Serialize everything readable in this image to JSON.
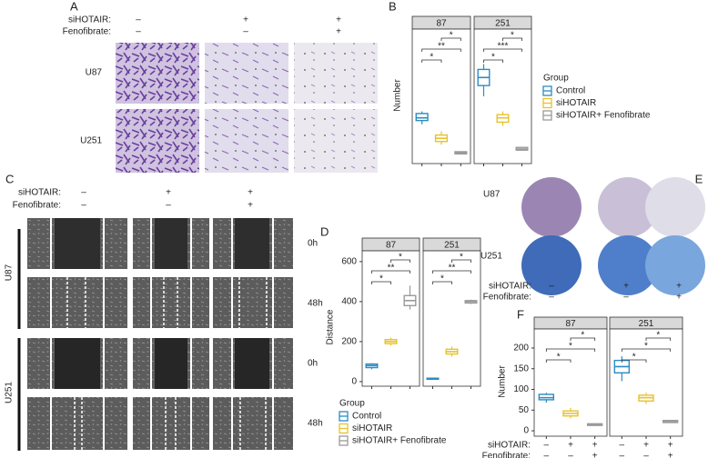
{
  "panels": {
    "A": {
      "label": "A",
      "conditions": [
        "siHOTAIR:",
        "Fenofibrate:"
      ],
      "signs": [
        [
          "–",
          "+",
          "+"
        ],
        [
          "–",
          "–",
          "+"
        ]
      ],
      "cell_lines": [
        "U87",
        "U251"
      ]
    },
    "C": {
      "label": "C",
      "conditions": [
        "siHOTAIR:",
        "Fenofibrate:"
      ],
      "signs": [
        [
          "–",
          "+",
          "+"
        ],
        [
          "–",
          "–",
          "+"
        ]
      ],
      "cell_lines": [
        "U87",
        "U251"
      ],
      "times": [
        "0h",
        "48h"
      ]
    },
    "E": {
      "label": "E",
      "conditions": [
        "siHOTAIR:",
        "Fenofibrate:"
      ],
      "signs": [
        [
          "–",
          "+",
          "+"
        ],
        [
          "–",
          "–",
          "+"
        ]
      ],
      "cell_lines": [
        "U87",
        "U251"
      ]
    }
  },
  "chart_data": [
    {
      "type": "box",
      "label": "B",
      "ylabel": "Number",
      "ylim": [
        -5,
        245
      ],
      "legend_title": "Group",
      "series": [
        {
          "name": "Control",
          "color": "#2b8cc4"
        },
        {
          "name": "siHOTAIR",
          "color": "#e8c22a"
        },
        {
          "name": "siHOTAIR+ Fenofibrate",
          "color": "#9a9a9a"
        }
      ],
      "facets": [
        {
          "name": "87",
          "boxes": [
            {
              "min": 68,
              "q1": 75,
              "median": 80,
              "q3": 88,
              "max": 92
            },
            {
              "min": 30,
              "q1": 36,
              "median": 42,
              "q3": 48,
              "max": 55
            },
            {
              "min": 12,
              "q1": 13,
              "median": 15,
              "q3": 17,
              "max": 18
            }
          ],
          "annotations": [
            "*",
            "**",
            "*"
          ]
        },
        {
          "name": "251",
          "boxes": [
            {
              "min": 120,
              "q1": 140,
              "median": 155,
              "q3": 170,
              "max": 180
            },
            {
              "min": 65,
              "q1": 72,
              "median": 80,
              "q3": 86,
              "max": 92
            },
            {
              "min": 19,
              "q1": 20,
              "median": 22,
              "q3": 25,
              "max": 26
            }
          ],
          "annotations": [
            "*",
            "***",
            "*"
          ]
        }
      ]
    },
    {
      "type": "box",
      "label": "D",
      "ylabel": "Distance",
      "ylim": [
        -23,
        654
      ],
      "yticks": [
        0,
        200,
        400,
        600
      ],
      "legend_title": "Group",
      "series": [
        {
          "name": "Control",
          "color": "#2b8cc4"
        },
        {
          "name": "siHOTAIR",
          "color": "#e8c22a"
        },
        {
          "name": "siHOTAIR+ Fenofibrate",
          "color": "#9a9a9a"
        }
      ],
      "facets": [
        {
          "name": "87",
          "boxes": [
            {
              "min": 62,
              "q1": 70,
              "median": 80,
              "q3": 88,
              "max": 92
            },
            {
              "min": 180,
              "q1": 190,
              "median": 200,
              "q3": 210,
              "max": 220
            },
            {
              "min": 360,
              "q1": 380,
              "median": 405,
              "q3": 430,
              "max": 480
            }
          ],
          "annotations": [
            "*",
            "**",
            "*"
          ]
        },
        {
          "name": "251",
          "boxes": [
            {
              "min": 10,
              "q1": 12,
              "median": 15,
              "q3": 17,
              "max": 18
            },
            {
              "min": 125,
              "q1": 138,
              "median": 150,
              "q3": 162,
              "max": 175
            },
            {
              "min": 388,
              "q1": 393,
              "median": 400,
              "q3": 405,
              "max": 410
            }
          ],
          "annotations": [
            "*",
            "**",
            "*"
          ]
        }
      ]
    },
    {
      "type": "box",
      "label": "F",
      "ylabel": "Number",
      "ylim": [
        -13,
        246
      ],
      "yticks": [
        0,
        50,
        100,
        150,
        200
      ],
      "colors": [
        "#2b8cc4",
        "#e8c22a",
        "#9a9a9a"
      ],
      "conditions": [
        "siHOTAIR:",
        "Fenofibrate:"
      ],
      "signs": [
        [
          "–",
          "+",
          "+",
          "–",
          "+",
          "+"
        ],
        [
          "–",
          "–",
          "+",
          "–",
          "–",
          "+"
        ]
      ],
      "facets": [
        {
          "name": "87",
          "boxes": [
            {
              "min": 68,
              "q1": 75,
              "median": 80,
              "q3": 88,
              "max": 92
            },
            {
              "min": 30,
              "q1": 36,
              "median": 42,
              "q3": 48,
              "max": 55
            },
            {
              "min": 12,
              "q1": 13,
              "median": 15,
              "q3": 17,
              "max": 18
            }
          ],
          "annotations": [
            "*",
            "*",
            "*"
          ]
        },
        {
          "name": "251",
          "boxes": [
            {
              "min": 120,
              "q1": 140,
              "median": 155,
              "q3": 170,
              "max": 180
            },
            {
              "min": 65,
              "q1": 72,
              "median": 80,
              "q3": 86,
              "max": 92
            },
            {
              "min": 19,
              "q1": 20,
              "median": 22,
              "q3": 25,
              "max": 26
            }
          ],
          "annotations": [
            "*",
            "*",
            "*"
          ]
        }
      ]
    }
  ]
}
